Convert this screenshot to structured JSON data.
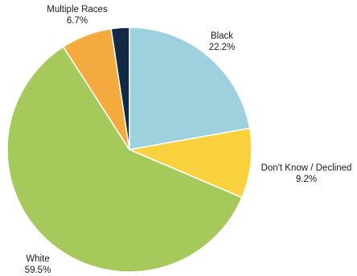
{
  "chart_data": {
    "type": "pie",
    "title": "",
    "start": "12 o'clock",
    "direction": "clockwise",
    "slices": [
      {
        "label": "Black",
        "value": 22.2,
        "value_label": "22.2%",
        "color": "#9dd1dd"
      },
      {
        "label": "Don't Know / Declined",
        "value": 9.2,
        "value_label": "9.2%",
        "color": "#f9d13f"
      },
      {
        "label": "White",
        "value": 59.5,
        "value_label": "59.5%",
        "color": "#a6c95c"
      },
      {
        "label": "Multiple Races",
        "value": 6.7,
        "value_label": "6.7%",
        "color": "#f4aa3f"
      },
      {
        "label": "",
        "value": 2.4,
        "value_label": "",
        "color": "#132a45"
      }
    ]
  }
}
